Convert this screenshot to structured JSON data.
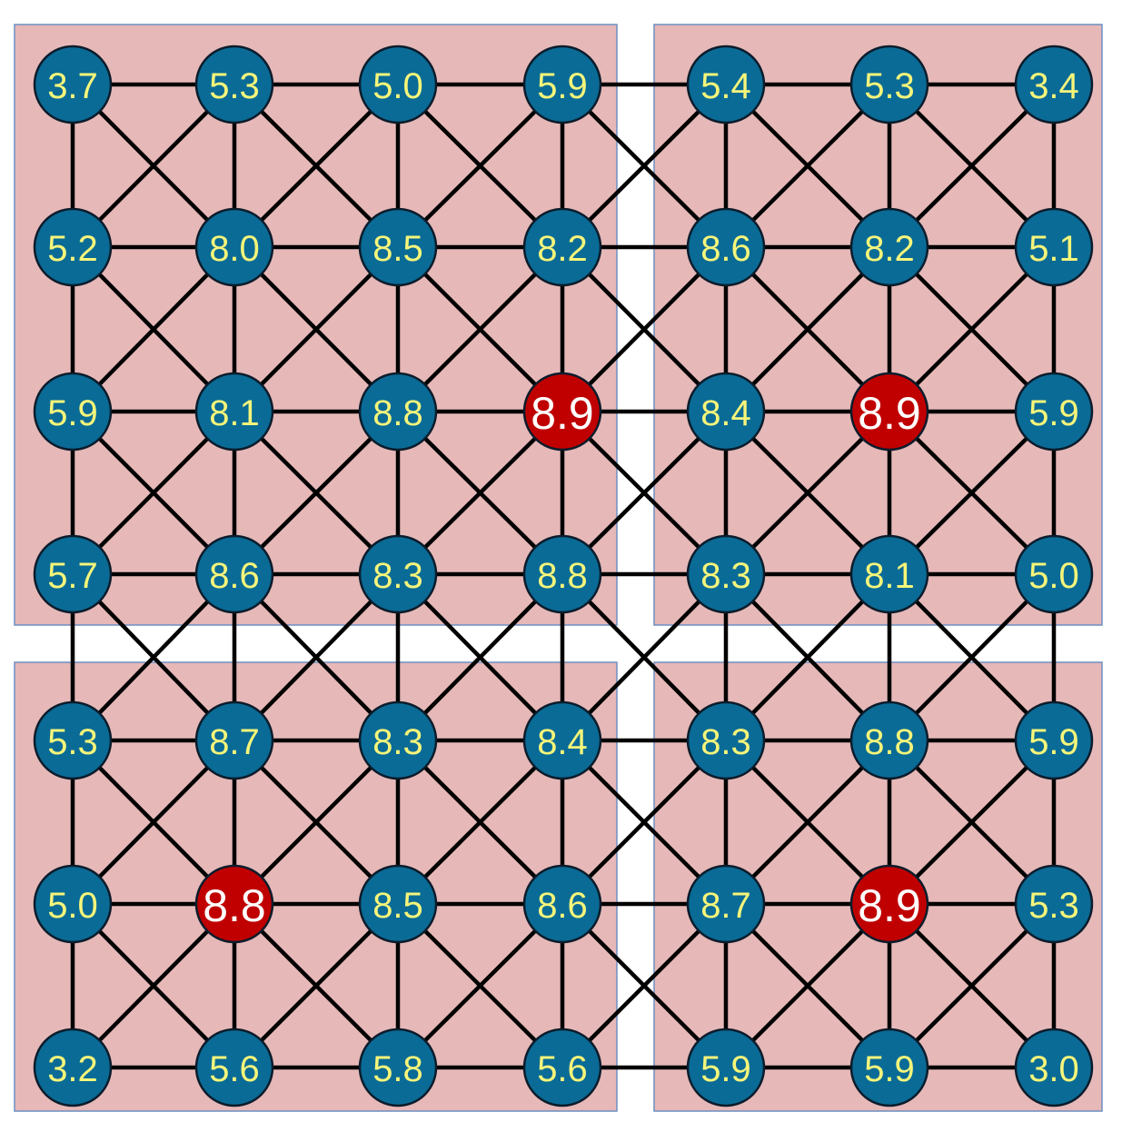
{
  "colors": {
    "background": "#ffffff",
    "region_fill": "#e6b8b8",
    "region_border": "#6d8fc0",
    "edge": "#000000",
    "node_fill": "#0a6b96",
    "node_label": "#f6f57a",
    "highlight_fill": "#c00000",
    "highlight_label": "#ffffff"
  },
  "regions": [
    {
      "name": "top-left-region",
      "rows": [
        0,
        3
      ],
      "cols": [
        0,
        3
      ]
    },
    {
      "name": "top-right-region",
      "rows": [
        0,
        3
      ],
      "cols": [
        4,
        6
      ]
    },
    {
      "name": "bottom-left-region",
      "rows": [
        4,
        6
      ],
      "cols": [
        0,
        3
      ]
    },
    {
      "name": "bottom-right-region",
      "rows": [
        4,
        6
      ],
      "cols": [
        4,
        6
      ]
    }
  ],
  "grid": {
    "rows": 7,
    "cols": 7,
    "values": [
      [
        "3.7",
        "5.3",
        "5.0",
        "5.9",
        "5.4",
        "5.3",
        "3.4"
      ],
      [
        "5.2",
        "8.0",
        "8.5",
        "8.2",
        "8.6",
        "8.2",
        "5.1"
      ],
      [
        "5.9",
        "8.1",
        "8.8",
        "8.9",
        "8.4",
        "8.9",
        "5.9"
      ],
      [
        "5.7",
        "8.6",
        "8.3",
        "8.8",
        "8.3",
        "8.1",
        "5.0"
      ],
      [
        "5.3",
        "8.7",
        "8.3",
        "8.4",
        "8.3",
        "8.8",
        "5.9"
      ],
      [
        "5.0",
        "8.8",
        "8.5",
        "8.6",
        "8.7",
        "8.9",
        "5.3"
      ],
      [
        "3.2",
        "5.6",
        "5.8",
        "5.6",
        "5.9",
        "5.9",
        "3.0"
      ]
    ],
    "highlighted": [
      [
        2,
        3
      ],
      [
        2,
        5
      ],
      [
        5,
        1
      ],
      [
        5,
        5
      ]
    ]
  },
  "connectivity": "king-move (horizontal, vertical and diagonal neighbours)"
}
